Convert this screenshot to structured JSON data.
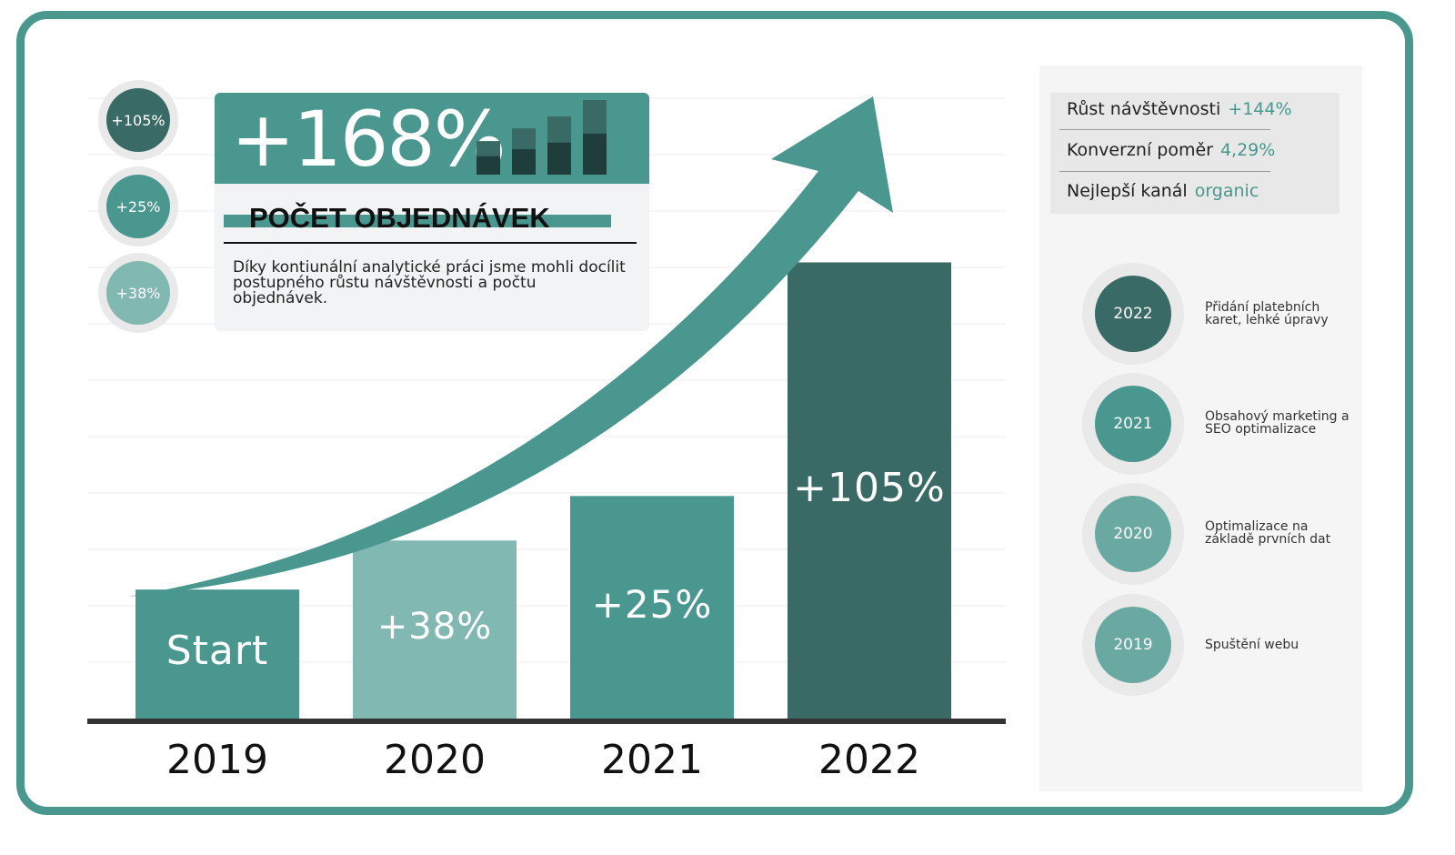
{
  "chart_data": {
    "type": "bar",
    "categories": [
      "2019",
      "2020",
      "2021",
      "2022"
    ],
    "bar_labels": [
      "Start",
      "+38%",
      "+25%",
      "+105%"
    ],
    "values": [
      1.0,
      1.38,
      1.725,
      3.536
    ],
    "ylim": [
      0,
      4.9
    ],
    "grid": true,
    "bar_colors": [
      "#4a9790",
      "#82b8b2",
      "#4a9790",
      "#396a66"
    ]
  },
  "colors": {
    "frame": "#4a9790",
    "teal": "#4a9790",
    "light_teal": "#82b8b2",
    "dark_teal": "#396a66",
    "accent_text": "#4a9790"
  },
  "hero": {
    "big_value": "+168%",
    "title": "POČET OBJEDNÁVEK",
    "description": "Díky kontiunální analytické práci jsme mohli docílit postupného růstu návštěvnosti a počtu objednávek.",
    "mini_bars": [
      0.45,
      0.62,
      0.78,
      1.0
    ]
  },
  "pct_circles": [
    {
      "label": "+105%",
      "color": "#396a66"
    },
    {
      "label": "+25%",
      "color": "#4a9790"
    },
    {
      "label": "+38%",
      "color": "#82b8b2"
    }
  ],
  "stats": [
    {
      "label": "Růst návštěvnosti",
      "value": "+144%"
    },
    {
      "label": "Konverzní poměr",
      "value": "4,29%"
    },
    {
      "label": "Nejlepší kanál",
      "value": "organic"
    }
  ],
  "timeline": [
    {
      "year": "2022",
      "text": "Přidání platebních karet, lehké úpravy",
      "color": "#396a66"
    },
    {
      "year": "2021",
      "text": "Obsahový marketing a SEO optimalizace",
      "color": "#4a9790"
    },
    {
      "year": "2020",
      "text": "Optimalizace na základě prvních dat",
      "color": "#6aa9a2"
    },
    {
      "year": "2019",
      "text": "Spuštění webu",
      "color": "#6aa9a2"
    }
  ]
}
